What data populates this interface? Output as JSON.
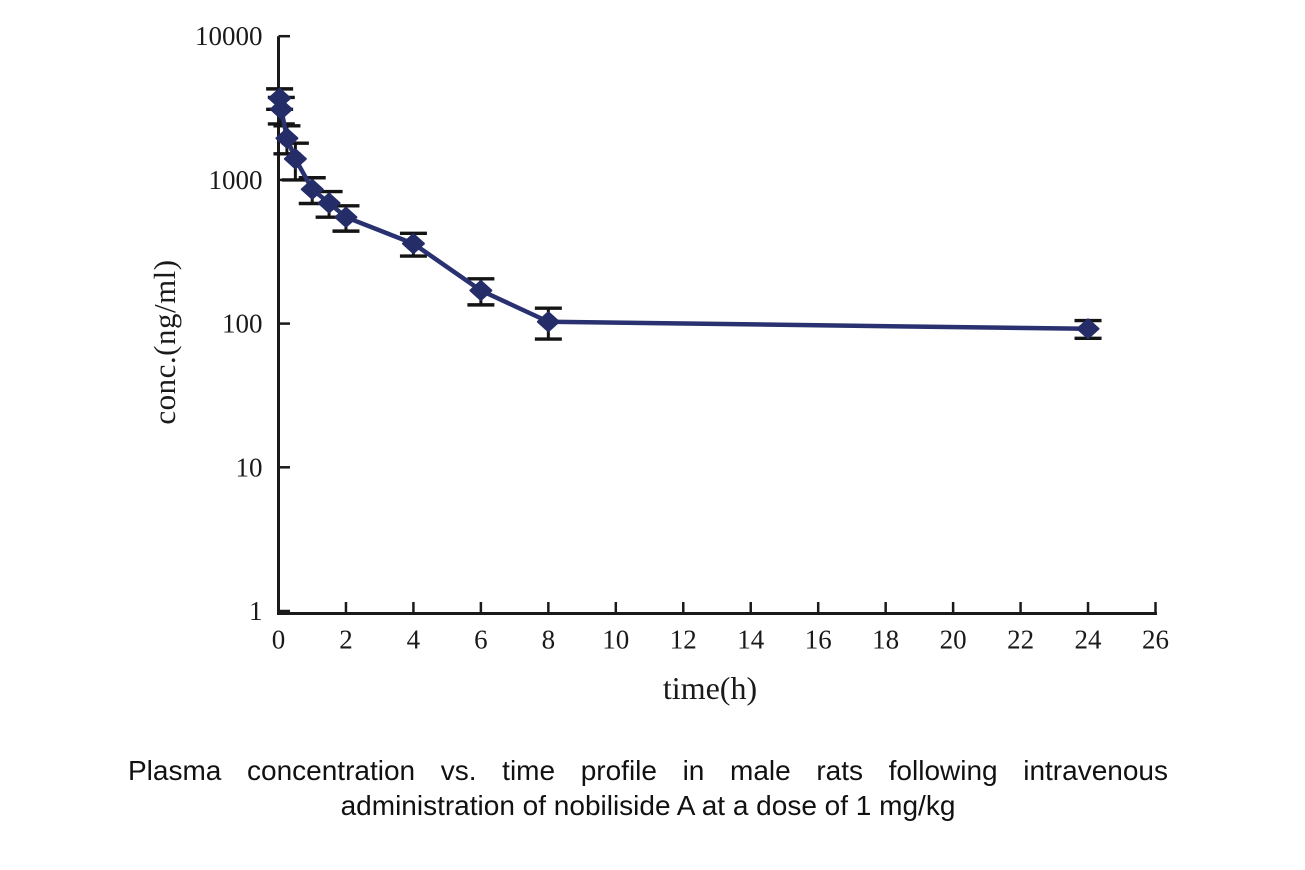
{
  "figure": {
    "y_axis_title": "conc.(ng/ml)",
    "x_axis_title": "time(h)"
  },
  "caption": {
    "line1": "Plasma concentration vs. time profile in male rats following intravenous",
    "line2": "administration of nobiliside A at a dose of 1 mg/kg"
  },
  "chart_data": {
    "type": "line",
    "title": "",
    "xlabel": "time(h)",
    "ylabel": "conc.(ng/ml)",
    "x": [
      0.033,
      0.083,
      0.25,
      0.5,
      1,
      1.5,
      2,
      4,
      6,
      8,
      24
    ],
    "y": [
      3700,
      3100,
      1950,
      1400,
      860,
      690,
      550,
      360,
      170,
      103,
      92
    ],
    "y_error": [
      600,
      650,
      430,
      400,
      175,
      140,
      110,
      65,
      35,
      25,
      13
    ],
    "xlim": [
      0,
      26
    ],
    "ylim": [
      1,
      10000
    ],
    "yscale": "log",
    "x_ticks": [
      0,
      2,
      4,
      6,
      8,
      10,
      12,
      14,
      16,
      18,
      20,
      22,
      24,
      26
    ],
    "y_ticks": [
      1,
      10,
      100,
      1000,
      10000
    ],
    "grid": false,
    "legend": null,
    "marker": "diamond",
    "line_color": "#2a3170",
    "marker_color": "#252d68",
    "error_bar_color": "#141414",
    "axis_color": "#1a1a1a",
    "units": {
      "x": "h",
      "y": "ng/ml"
    }
  }
}
